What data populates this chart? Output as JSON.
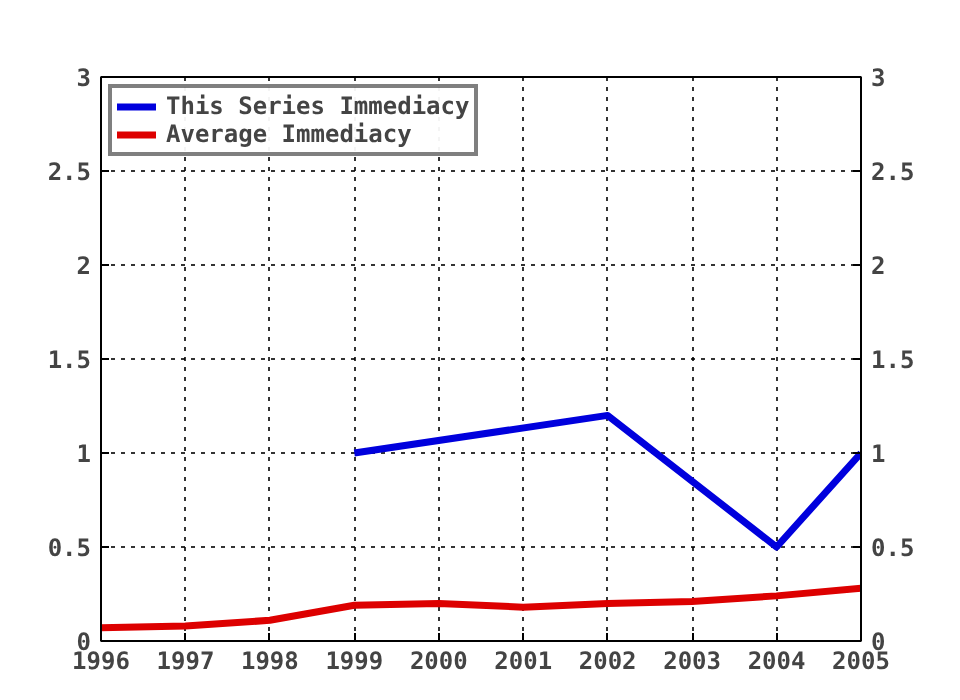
{
  "chart_data": {
    "type": "line",
    "x": [
      1996,
      1997,
      1998,
      1999,
      2000,
      2001,
      2002,
      2003,
      2004,
      2005
    ],
    "series": [
      {
        "name": "This Series Immediacy",
        "color": "#0000dd",
        "x": [
          1999,
          2002,
          2004,
          2005
        ],
        "values": [
          1.0,
          1.2,
          0.5,
          1.0
        ]
      },
      {
        "name": "Average Immediacy",
        "color": "#dd0000",
        "values": [
          0.07,
          0.08,
          0.11,
          0.19,
          0.2,
          0.18,
          0.2,
          0.21,
          0.24,
          0.28
        ]
      }
    ],
    "xlim": [
      1996,
      2005
    ],
    "xticks": [
      1996,
      1997,
      1998,
      1999,
      2000,
      2001,
      2002,
      2003,
      2004,
      2005
    ],
    "ylim": [
      0,
      3
    ],
    "yticks": [
      0,
      {
        "value": 0.5,
        "label": "0.5"
      },
      1,
      {
        "value": 1.5,
        "label": "1.5"
      },
      2,
      {
        "value": 2.5,
        "label": "2.5"
      },
      3
    ],
    "y2lim": [
      0,
      3
    ],
    "y2ticks": [
      0,
      {
        "value": 0.5,
        "label": "0.5"
      },
      1,
      {
        "value": 1.5,
        "label": "1.5"
      },
      2,
      {
        "value": 2.5,
        "label": "2.5"
      },
      3
    ],
    "grid": true,
    "legend": "top left",
    "marker": "none",
    "line_style": "solid"
  }
}
